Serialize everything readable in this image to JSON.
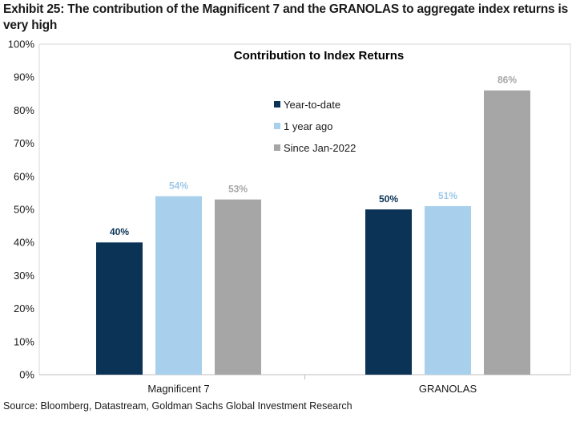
{
  "exhibit_title": "Exhibit 25: The contribution of the Magnificent 7 and the GRANOLAS to aggregate index returns is very high",
  "source_note": "Source: Bloomberg, Datastream, Goldman Sachs Global Investment Research",
  "chart_data": {
    "type": "bar",
    "title": "Contribution to Index Returns",
    "categories": [
      "Magnificent 7",
      "GRANOLAS"
    ],
    "series": [
      {
        "name": "Year-to-date",
        "values": [
          40,
          50
        ],
        "labels": [
          "40%",
          "50%"
        ],
        "color": "#0b3356",
        "label_color": "#0b3356"
      },
      {
        "name": "1 year ago",
        "values": [
          54,
          51
        ],
        "labels": [
          "54%",
          "51%"
        ],
        "color": "#a8d0ec",
        "label_color": "#9dc9e8"
      },
      {
        "name": "Since Jan-2022",
        "values": [
          53,
          86
        ],
        "labels": [
          "53%",
          "86%"
        ],
        "color": "#a6a6a6",
        "label_color": "#a6a6a6"
      }
    ],
    "ylim": [
      0,
      100
    ],
    "yticks": [
      0,
      10,
      20,
      30,
      40,
      50,
      60,
      70,
      80,
      90,
      100
    ],
    "ytick_labels": [
      "0%",
      "10%",
      "20%",
      "30%",
      "40%",
      "50%",
      "60%",
      "70%",
      "80%",
      "90%",
      "100%"
    ],
    "xlabel": "",
    "ylabel": "",
    "grid": false,
    "legend_position": "center"
  }
}
